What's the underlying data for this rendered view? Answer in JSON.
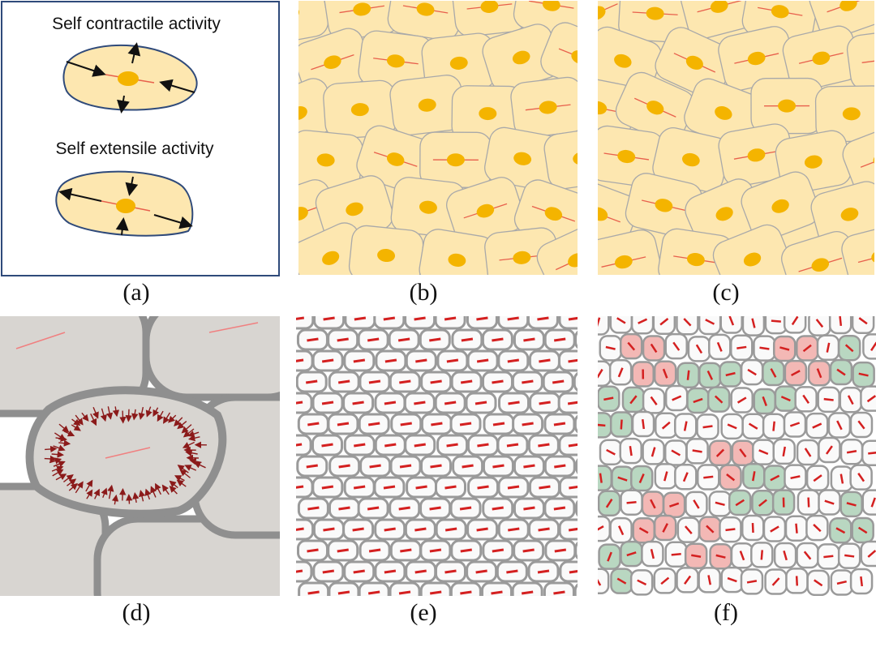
{
  "panel_a": {
    "contractile_label": "Self contractile activity",
    "extensile_label": "Self extensile activity"
  },
  "captions": [
    "(a)",
    "(b)",
    "(c)",
    "(d)",
    "(e)",
    "(f)"
  ]
}
